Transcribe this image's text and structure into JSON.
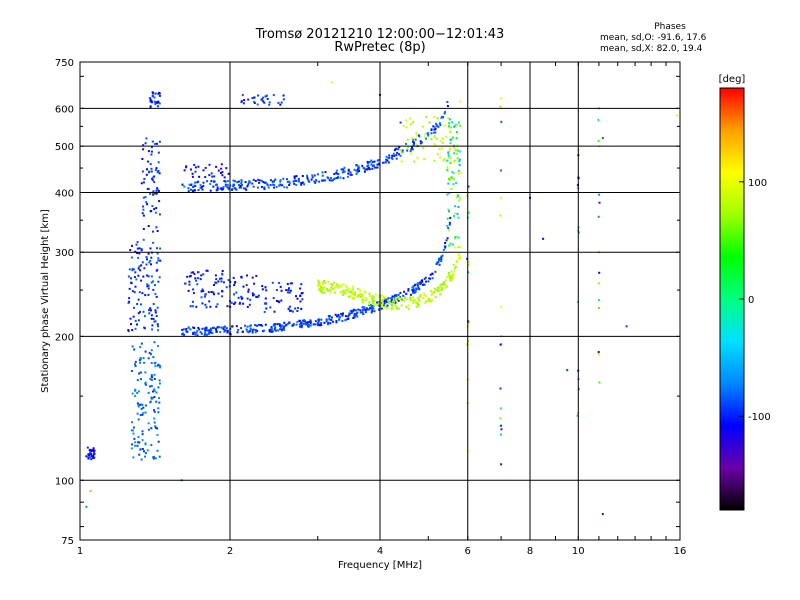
{
  "header": {
    "title_line1": "Tromsø 20121210 12:00:00−12:01:43",
    "title_line2": "RwPretec (8p)"
  },
  "phase_stats": {
    "title": "Phases",
    "line_o": "mean, sd,O:  -91.6, 17.6",
    "line_x": "mean, sd,X:  82.0, 19.4"
  },
  "chart_data": {
    "type": "scatter",
    "xlabel": "Frequency [MHz]",
    "ylabel": "Stationary phase Virtual Height [km]",
    "xscale": "log",
    "yscale": "log",
    "xlim": [
      1,
      16
    ],
    "ylim": [
      75,
      750
    ],
    "x_ticks": [
      1,
      2,
      4,
      6,
      8,
      10,
      16
    ],
    "x_tick_labels": [
      "1",
      "2",
      "4",
      "6",
      "8",
      "10",
      "16"
    ],
    "x_gridlines": [
      2,
      4,
      6,
      8,
      10
    ],
    "y_ticks": [
      75,
      100,
      200,
      300,
      400,
      500,
      600,
      750
    ],
    "y_tick_labels": [
      "75",
      "100",
      "200",
      "300",
      "400",
      "500",
      "600",
      "750"
    ],
    "y_gridlines": [
      100,
      200,
      300,
      400,
      500,
      600
    ],
    "grid": true,
    "colorbar": {
      "label": "[deg]",
      "range": [
        -180,
        180
      ],
      "ticks": [
        100,
        0,
        -100
      ],
      "tick_labels": [
        "100",
        "0",
        "-100"
      ],
      "colors": [
        "#000000",
        "#6a00a8",
        "#0000ff",
        "#0088ff",
        "#00e0ff",
        "#00ff80",
        "#00ff00",
        "#a0ff00",
        "#ffff00",
        "#ffa000",
        "#ff0000"
      ]
    },
    "series": [
      {
        "mode": "O",
        "phase_mean": -91.6,
        "phase_sd": 17.6,
        "segments": [
          {
            "f": [
              1.03,
              1.07
            ],
            "h": [
              110,
              118
            ],
            "phase": -105
          },
          {
            "f": [
              1.27,
              1.45
            ],
            "h": [
              110,
              195
            ],
            "phase": -80
          },
          {
            "f": [
              1.25,
              1.45
            ],
            "h": [
              205,
              320
            ],
            "phase": -95
          },
          {
            "f": [
              1.33,
              1.45
            ],
            "h": [
              330,
              520
            ],
            "phase": -95
          },
          {
            "f": [
              1.38,
              1.45
            ],
            "h": [
              600,
              650
            ],
            "phase": -100
          },
          {
            "f": [
              1.62,
              2.0
            ],
            "h": [
              430,
              460
            ],
            "phase": -110
          },
          {
            "f": [
              1.62,
              2.0
            ],
            "h": [
              230,
              275
            ],
            "phase": -100
          },
          {
            "f": [
              2.0,
              2.3
            ],
            "h": [
              230,
              270
            ],
            "phase": -100
          },
          {
            "f": [
              2.3,
              2.8
            ],
            "h": [
              225,
              260
            ],
            "phase": -100
          },
          {
            "f": [
              2.1,
              2.6
            ],
            "h": [
              610,
              640
            ],
            "phase": -95
          }
        ],
        "trace_lower": {
          "f": [
            1.6,
            1.8,
            2.0,
            2.4,
            2.8,
            3.2,
            3.6,
            4.0,
            4.4,
            4.8,
            5.1,
            5.3,
            5.45,
            5.55
          ],
          "h": [
            205,
            205,
            206,
            208,
            212,
            217,
            224,
            232,
            242,
            255,
            270,
            290,
            320,
            360
          ]
        },
        "trace_upper": {
          "f": [
            1.6,
            1.9,
            2.2,
            2.6,
            3.0,
            3.4,
            3.8,
            4.2,
            4.6,
            5.0,
            5.3,
            5.45,
            5.5
          ],
          "h": [
            412,
            413,
            415,
            420,
            428,
            440,
            455,
            475,
            500,
            530,
            560,
            600,
            640
          ]
        }
      },
      {
        "mode": "X",
        "phase_mean": 82.0,
        "phase_sd": 19.4,
        "trace": {
          "f": [
            3.0,
            3.4,
            3.8,
            4.2,
            4.6,
            5.0,
            5.3,
            5.5,
            5.7,
            5.8
          ],
          "h": [
            255,
            250,
            240,
            235,
            235,
            242,
            252,
            265,
            280,
            300
          ]
        },
        "upper": {
          "f": [
            4.4,
            5.8
          ],
          "h": [
            460,
            580
          ]
        }
      }
    ],
    "scattered_points": [
      {
        "f": 4.0,
        "h": 640,
        "phase": -100
      },
      {
        "f": 4.4,
        "h": 560,
        "phase": -90
      },
      {
        "f": 5.8,
        "h": 620,
        "phase": 100
      },
      {
        "f": 6.0,
        "h": 210,
        "phase": 120
      },
      {
        "f": 6.0,
        "h": 145,
        "phase": 130
      },
      {
        "f": 6.0,
        "h": 115,
        "phase": 110
      },
      {
        "f": 7.0,
        "h": 630,
        "phase": 100
      },
      {
        "f": 7.0,
        "h": 390,
        "phase": 100
      },
      {
        "f": 7.0,
        "h": 130,
        "phase": -90
      },
      {
        "f": 7.0,
        "h": 108,
        "phase": -100
      },
      {
        "f": 8.0,
        "h": 390,
        "phase": -110
      },
      {
        "f": 8.5,
        "h": 320,
        "phase": -110
      },
      {
        "f": 9.5,
        "h": 170,
        "phase": -90
      },
      {
        "f": 10.0,
        "h": 490,
        "phase": 120
      },
      {
        "f": 10.0,
        "h": 430,
        "phase": -120
      },
      {
        "f": 11.0,
        "h": 600,
        "phase": 150
      },
      {
        "f": 11.0,
        "h": 300,
        "phase": 140
      },
      {
        "f": 11.2,
        "h": 520,
        "phase": -80
      },
      {
        "f": 11.2,
        "h": 85,
        "phase": -140
      },
      {
        "f": 12.5,
        "h": 210,
        "phase": -90
      },
      {
        "f": 15.8,
        "h": 580,
        "phase": 95
      },
      {
        "f": 1.03,
        "h": 88,
        "phase": -70
      },
      {
        "f": 1.05,
        "h": 95,
        "phase": 140
      },
      {
        "f": 1.6,
        "h": 100,
        "phase": -80
      },
      {
        "f": 3.2,
        "h": 680,
        "phase": 100
      }
    ]
  }
}
